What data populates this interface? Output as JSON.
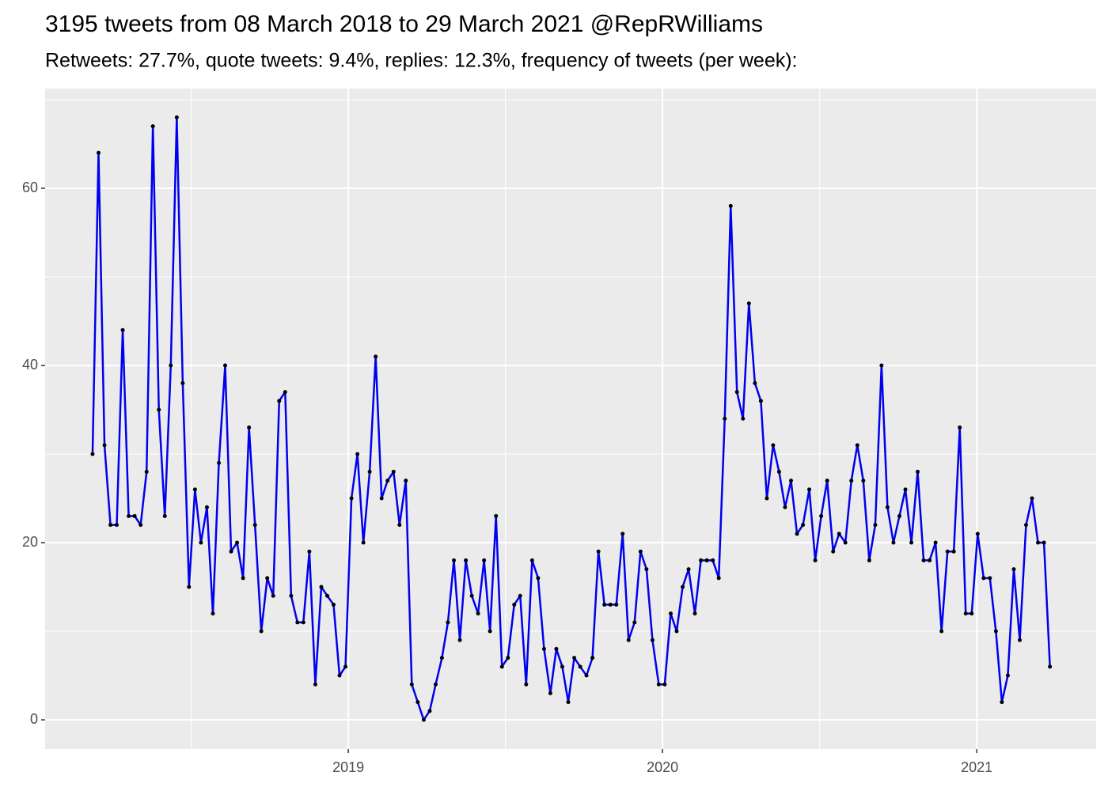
{
  "chart_data": {
    "type": "line",
    "title": "3195 tweets from 08 March 2018 to 29 March 2021 @RepRWilliams",
    "subtitle": "Retweets: 27.7%, quote tweets: 9.4%, replies: 12.3%, frequency of tweets (per week):",
    "x": [
      2018.186,
      2018.205,
      2018.224,
      2018.243,
      2018.263,
      2018.282,
      2018.301,
      2018.32,
      2018.339,
      2018.358,
      2018.378,
      2018.397,
      2018.416,
      2018.435,
      2018.454,
      2018.473,
      2018.493,
      2018.512,
      2018.531,
      2018.55,
      2018.569,
      2018.588,
      2018.608,
      2018.627,
      2018.646,
      2018.665,
      2018.684,
      2018.703,
      2018.723,
      2018.742,
      2018.761,
      2018.78,
      2018.799,
      2018.818,
      2018.838,
      2018.857,
      2018.876,
      2018.895,
      2018.914,
      2018.933,
      2018.953,
      2018.972,
      2018.991,
      2019.01,
      2019.029,
      2019.048,
      2019.068,
      2019.087,
      2019.106,
      2019.125,
      2019.144,
      2019.163,
      2019.183,
      2019.202,
      2019.221,
      2019.24,
      2019.259,
      2019.278,
      2019.298,
      2019.317,
      2019.336,
      2019.355,
      2019.374,
      2019.393,
      2019.413,
      2019.432,
      2019.451,
      2019.47,
      2019.489,
      2019.508,
      2019.528,
      2019.547,
      2019.566,
      2019.585,
      2019.604,
      2019.623,
      2019.643,
      2019.662,
      2019.681,
      2019.7,
      2019.719,
      2019.738,
      2019.758,
      2019.777,
      2019.796,
      2019.815,
      2019.834,
      2019.853,
      2019.873,
      2019.892,
      2019.911,
      2019.93,
      2019.949,
      2019.968,
      2019.988,
      2020.007,
      2020.026,
      2020.045,
      2020.064,
      2020.083,
      2020.103,
      2020.122,
      2020.141,
      2020.16,
      2020.179,
      2020.198,
      2020.217,
      2020.237,
      2020.256,
      2020.275,
      2020.294,
      2020.313,
      2020.332,
      2020.352,
      2020.371,
      2020.39,
      2020.409,
      2020.428,
      2020.447,
      2020.467,
      2020.486,
      2020.505,
      2020.524,
      2020.543,
      2020.562,
      2020.582,
      2020.601,
      2020.62,
      2020.639,
      2020.658,
      2020.677,
      2020.697,
      2020.716,
      2020.735,
      2020.754,
      2020.773,
      2020.792,
      2020.812,
      2020.831,
      2020.85,
      2020.869,
      2020.888,
      2020.907,
      2020.927,
      2020.946,
      2020.965,
      2020.984,
      2021.003,
      2021.022,
      2021.042,
      2021.061,
      2021.08,
      2021.099,
      2021.118,
      2021.137,
      2021.157,
      2021.176,
      2021.195,
      2021.214,
      2021.233
    ],
    "series": [
      {
        "color": "#0000ee",
        "point_color": "#000000",
        "values": [
          30,
          64,
          31,
          22,
          22,
          44,
          23,
          23,
          22,
          28,
          67,
          35,
          23,
          40,
          68,
          38,
          15,
          26,
          20,
          24,
          12,
          29,
          40,
          19,
          20,
          16,
          33,
          22,
          10,
          16,
          14,
          36,
          37,
          14,
          11,
          11,
          19,
          4,
          15,
          14,
          13,
          5,
          6,
          25,
          30,
          20,
          28,
          41,
          25,
          27,
          28,
          22,
          27,
          4,
          2,
          0,
          1,
          4,
          7,
          11,
          18,
          9,
          18,
          14,
          12,
          18,
          10,
          23,
          6,
          7,
          13,
          14,
          4,
          18,
          16,
          8,
          3,
          8,
          6,
          2,
          7,
          6,
          5,
          7,
          19,
          13,
          13,
          13,
          21,
          9,
          11,
          19,
          17,
          9,
          4,
          4,
          12,
          10,
          15,
          17,
          12,
          18,
          18,
          18,
          16,
          34,
          58,
          37,
          34,
          47,
          38,
          36,
          25,
          31,
          28,
          24,
          27,
          21,
          22,
          26,
          18,
          23,
          27,
          19,
          21,
          20,
          27,
          31,
          27,
          18,
          22,
          40,
          24,
          20,
          23,
          26,
          20,
          28,
          18,
          18,
          20,
          10,
          19,
          19,
          33,
          12,
          12,
          21,
          16,
          16,
          10,
          2,
          5,
          17,
          9,
          22,
          25,
          20,
          20,
          6
        ]
      }
    ],
    "xlim": [
      2018.035,
      2021.38
    ],
    "xticks": [
      2019,
      2020,
      2021
    ],
    "ylim": [
      -3.3,
      71.25
    ],
    "yticks": [
      0,
      20,
      40,
      60
    ],
    "grid": true
  }
}
